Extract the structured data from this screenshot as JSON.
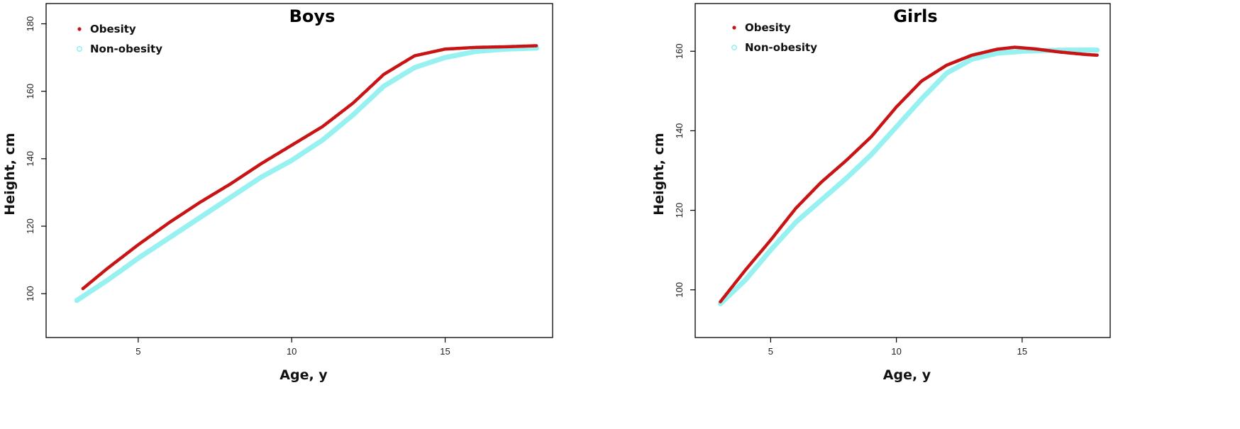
{
  "legend": {
    "obesity": "Obesity",
    "non_obesity": "Non-obesity"
  },
  "colors": {
    "obesity": "#c81414",
    "non_obesity": "#98f1f1"
  },
  "chart_data": [
    {
      "type": "scatter",
      "title": "Boys",
      "xlabel": "Age, y",
      "ylabel": "Height, cm",
      "xlim": [
        2.0,
        18.5
      ],
      "ylim": [
        87,
        186
      ],
      "xticks": [
        5,
        10,
        15
      ],
      "yticks": [
        100,
        120,
        140,
        160,
        180
      ],
      "legend_position": "top-left",
      "grid": false,
      "series": [
        {
          "name": "Obesity",
          "x": [
            3.2,
            4,
            5,
            6,
            7,
            8,
            9,
            10,
            11,
            12,
            13,
            14,
            15,
            16,
            17,
            18
          ],
          "y": [
            101.5,
            107.5,
            114.5,
            121,
            127,
            132.5,
            138.5,
            144,
            149.5,
            156.5,
            165,
            170.5,
            172.5,
            173,
            173.2,
            173.5
          ]
        },
        {
          "name": "Non-obesity",
          "x": [
            3,
            4,
            5,
            6,
            7,
            8,
            9,
            10,
            11,
            12,
            13,
            14,
            15,
            16,
            17,
            18
          ],
          "y": [
            98,
            104,
            110.5,
            116.5,
            122.5,
            128.5,
            134.5,
            139.5,
            145.5,
            153,
            161.5,
            167,
            170,
            171.8,
            172.5,
            172.8
          ]
        }
      ]
    },
    {
      "type": "scatter",
      "title": "Girls",
      "xlabel": "Age, y",
      "ylabel": "Height, cm",
      "xlim": [
        2.0,
        18.5
      ],
      "ylim": [
        88,
        172
      ],
      "xticks": [
        5,
        10,
        15
      ],
      "yticks": [
        100,
        120,
        140,
        160
      ],
      "legend_position": "top-left",
      "grid": false,
      "series": [
        {
          "name": "Obesity",
          "x": [
            3,
            4,
            5,
            6,
            7,
            8,
            9,
            10,
            11,
            12,
            13,
            14,
            14.7,
            15.5,
            16.5,
            17.5,
            18
          ],
          "y": [
            97,
            105,
            112.5,
            120.5,
            127,
            132.5,
            138.5,
            146,
            152.5,
            156.5,
            159,
            160.5,
            161,
            160.6,
            159.8,
            159.2,
            159
          ]
        },
        {
          "name": "Non-obesity",
          "x": [
            3,
            4,
            5,
            6,
            7,
            8,
            9,
            10,
            11,
            12,
            13,
            14,
            15,
            16,
            17,
            18
          ],
          "y": [
            96.5,
            102.5,
            110,
            117,
            122.5,
            128,
            134,
            141,
            148,
            154.5,
            158,
            159.5,
            160,
            160.2,
            160.3,
            160.3
          ]
        }
      ]
    }
  ]
}
